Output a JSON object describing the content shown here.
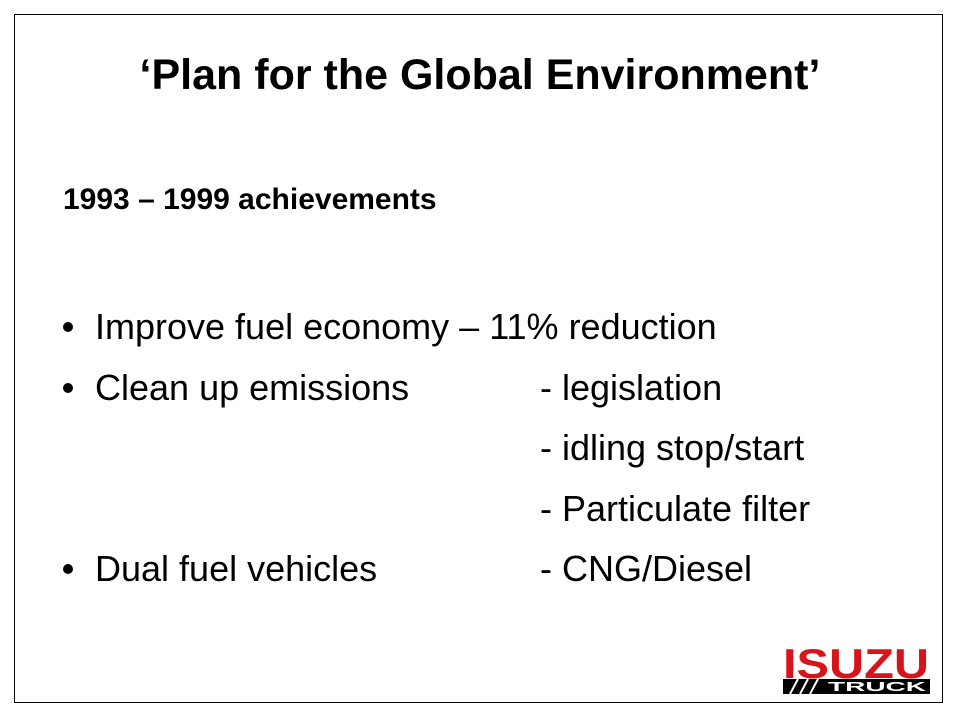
{
  "title": "‘Plan for the Global Environment’",
  "subtitle": "1993 – 1999 achievements",
  "bullets": [
    {
      "text": "Improve fuel economy – 11% reduction"
    },
    {
      "text": "Clean up emissions",
      "details": [
        "- legislation",
        "- idling stop/start",
        "- Particulate filter"
      ]
    },
    {
      "text": "Dual fuel vehicles",
      "details": [
        "- CNG/Diesel"
      ]
    }
  ],
  "logo": {
    "brand": "ISUZU",
    "sub": "TRUCK"
  }
}
